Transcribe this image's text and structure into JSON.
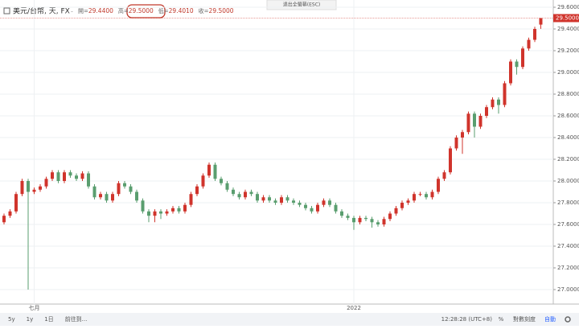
{
  "chart_data": {
    "type": "candlestick",
    "title": "美元/台幣, 天, FX",
    "header_values": [
      {
        "key": "開=",
        "text": "29.4400"
      },
      {
        "key": "高=",
        "text": "29.5000"
      },
      {
        "key": "低=",
        "text": "29.4010"
      },
      {
        "key": "收=",
        "text": "29.5000"
      }
    ],
    "last_label": "29.5000",
    "up_color": "#d0342c",
    "down_color": "#5a9e6f",
    "categories": [
      null,
      null,
      null,
      null,
      null,
      "七月",
      null,
      null,
      null,
      null,
      null,
      null,
      null,
      null,
      null,
      null,
      null,
      null,
      null,
      null,
      null,
      null,
      null,
      null,
      null,
      null,
      null,
      null,
      null,
      null,
      null,
      null,
      null,
      null,
      null,
      null,
      null,
      null,
      null,
      null,
      null,
      null,
      null,
      null,
      null,
      null,
      null,
      null,
      null,
      null,
      null,
      null,
      null,
      null,
      null,
      null,
      null,
      null,
      "2022",
      null,
      null,
      null,
      null,
      null,
      null,
      null,
      null,
      null,
      null,
      null,
      null,
      null,
      null,
      null,
      null,
      null,
      null,
      null,
      null,
      null,
      null,
      null,
      null,
      null,
      null,
      null,
      null,
      null,
      null,
      null
    ],
    "open": [
      27.62,
      27.68,
      27.72,
      27.88,
      28.0,
      27.9,
      27.92,
      27.95,
      28.02,
      28.08,
      28.0,
      28.08,
      28.05,
      28.02,
      28.07,
      27.95,
      27.85,
      27.88,
      27.82,
      27.88,
      27.98,
      27.95,
      27.9,
      27.82,
      27.72,
      27.68,
      27.72,
      27.7,
      27.72,
      27.75,
      27.72,
      27.78,
      27.88,
      27.95,
      28.05,
      28.15,
      28.02,
      27.98,
      27.92,
      27.88,
      27.85,
      27.9,
      27.88,
      27.82,
      27.85,
      27.82,
      27.8,
      27.85,
      27.82,
      27.8,
      27.78,
      27.75,
      27.72,
      27.78,
      27.82,
      27.78,
      27.72,
      27.68,
      27.66,
      27.62,
      27.66,
      27.65,
      27.62,
      27.6,
      27.65,
      27.7,
      27.75,
      27.8,
      27.82,
      27.88,
      27.88,
      27.85,
      27.9,
      28.02,
      28.08,
      28.3,
      28.4,
      28.45,
      28.62,
      28.5,
      28.6,
      28.68,
      28.75,
      28.7,
      28.9,
      29.1,
      29.05,
      29.22,
      29.3,
      29.44
    ],
    "high": [
      27.7,
      27.74,
      27.9,
      28.02,
      28.02,
      27.94,
      27.97,
      28.04,
      28.1,
      28.1,
      28.1,
      28.1,
      28.07,
      28.09,
      28.09,
      27.97,
      27.9,
      27.9,
      27.9,
      28.0,
      28.0,
      27.97,
      27.92,
      27.84,
      27.74,
      27.74,
      27.74,
      27.74,
      27.77,
      27.77,
      27.8,
      27.9,
      27.97,
      28.07,
      28.17,
      28.17,
      28.04,
      28.0,
      27.94,
      27.9,
      27.92,
      27.92,
      27.9,
      27.87,
      27.87,
      27.84,
      27.87,
      27.87,
      27.84,
      27.82,
      27.8,
      27.77,
      27.8,
      27.84,
      27.84,
      27.8,
      27.74,
      27.7,
      27.68,
      27.68,
      27.68,
      27.67,
      27.64,
      27.67,
      27.72,
      27.77,
      27.82,
      27.84,
      27.9,
      27.9,
      27.9,
      27.92,
      28.04,
      28.1,
      28.32,
      28.42,
      28.47,
      28.64,
      28.64,
      28.62,
      28.7,
      28.77,
      28.77,
      28.92,
      29.12,
      29.12,
      29.24,
      29.32,
      29.42,
      29.5
    ],
    "low": [
      27.6,
      27.66,
      27.7,
      27.86,
      27.0,
      27.88,
      27.9,
      27.93,
      28.0,
      27.98,
      27.98,
      28.03,
      28.0,
      28.0,
      27.93,
      27.83,
      27.83,
      27.8,
      27.8,
      27.86,
      27.93,
      27.88,
      27.8,
      27.7,
      27.62,
      27.62,
      27.65,
      27.68,
      27.7,
      27.7,
      27.7,
      27.76,
      27.86,
      27.93,
      28.03,
      28.0,
      27.96,
      27.9,
      27.86,
      27.83,
      27.83,
      27.86,
      27.8,
      27.8,
      27.8,
      27.78,
      27.78,
      27.8,
      27.78,
      27.76,
      27.73,
      27.7,
      27.7,
      27.76,
      27.76,
      27.7,
      27.66,
      27.64,
      27.55,
      27.6,
      27.63,
      27.57,
      27.58,
      27.58,
      27.63,
      27.68,
      27.73,
      27.78,
      27.8,
      27.86,
      27.83,
      27.83,
      27.88,
      28.0,
      28.06,
      28.28,
      28.25,
      28.43,
      28.4,
      28.48,
      28.58,
      28.66,
      28.62,
      28.68,
      28.88,
      28.98,
      29.03,
      29.2,
      29.28,
      29.401
    ],
    "close": [
      27.68,
      27.72,
      27.88,
      28.0,
      27.9,
      27.92,
      27.95,
      28.02,
      28.08,
      28.0,
      28.08,
      28.05,
      28.02,
      28.07,
      27.95,
      27.85,
      27.88,
      27.82,
      27.88,
      27.98,
      27.95,
      27.9,
      27.82,
      27.72,
      27.68,
      27.72,
      27.7,
      27.72,
      27.75,
      27.72,
      27.78,
      27.88,
      27.95,
      28.05,
      28.15,
      28.02,
      27.98,
      27.92,
      27.88,
      27.85,
      27.9,
      27.88,
      27.82,
      27.85,
      27.82,
      27.8,
      27.85,
      27.82,
      27.8,
      27.78,
      27.75,
      27.72,
      27.78,
      27.82,
      27.78,
      27.72,
      27.68,
      27.66,
      27.62,
      27.66,
      27.65,
      27.62,
      27.6,
      27.65,
      27.7,
      27.75,
      27.8,
      27.82,
      27.88,
      27.88,
      27.85,
      27.9,
      28.02,
      28.08,
      28.3,
      28.4,
      28.45,
      28.62,
      28.5,
      28.6,
      28.68,
      28.75,
      28.7,
      28.9,
      29.1,
      29.05,
      29.22,
      29.3,
      29.4,
      29.5
    ],
    "ylim": [
      26.9,
      29.65
    ],
    "yticks": [
      {
        "value": 27.0,
        "label": "27.0000"
      },
      {
        "value": 27.2,
        "label": "27.2000"
      },
      {
        "value": 27.4,
        "label": "27.4000"
      },
      {
        "value": 27.6,
        "label": "27.6000"
      },
      {
        "value": 27.8,
        "label": "27.8000"
      },
      {
        "value": 28.0,
        "label": "28.0000"
      },
      {
        "value": 28.2,
        "label": "28.2000"
      },
      {
        "value": 28.4,
        "label": "28.4000"
      },
      {
        "value": 28.6,
        "label": "28.6000"
      },
      {
        "value": 28.8,
        "label": "28.8000"
      },
      {
        "value": 29.0,
        "label": "29.0000"
      },
      {
        "value": 29.2,
        "label": "29.2000"
      },
      {
        "value": 29.4,
        "label": "29.4000"
      },
      {
        "value": 29.6,
        "label": "29.6000"
      }
    ],
    "grid": true
  },
  "exit_fullscreen": "退出全螢幕(ESC)",
  "toolbar": {
    "ranges": [
      "5y",
      "1y",
      "1日"
    ],
    "goto": "前往到...",
    "time": "12:28:28 (UTC+8)",
    "percent": "%",
    "log": "對數刻度",
    "auto": "自動"
  }
}
